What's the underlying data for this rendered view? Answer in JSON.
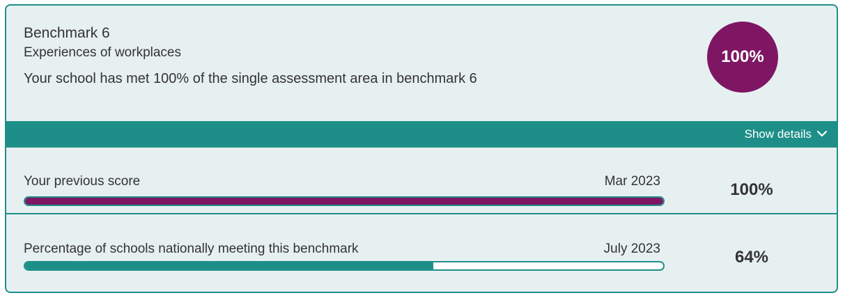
{
  "benchmark": {
    "title": "Benchmark 6",
    "subtitle": "Experiences of workplaces",
    "description": "Your school has met 100% of the single assessment area in benchmark 6",
    "score": "100%"
  },
  "details": {
    "toggle_label": "Show details",
    "icon": "chevron-down-icon"
  },
  "rows": [
    {
      "label": "Your previous score",
      "date": "Mar 2023",
      "value": "100%",
      "progress": 1.0,
      "fill_color": "#7e1663"
    },
    {
      "label": "Percentage of schools nationally meeting this benchmark",
      "date": "July 2023",
      "value": "64%",
      "progress": 0.64,
      "fill_color": "#1e8f88"
    }
  ],
  "colors": {
    "accent_teal": "#1e8f88",
    "accent_plum": "#7e1663",
    "card_bg": "#e7f0f1"
  }
}
